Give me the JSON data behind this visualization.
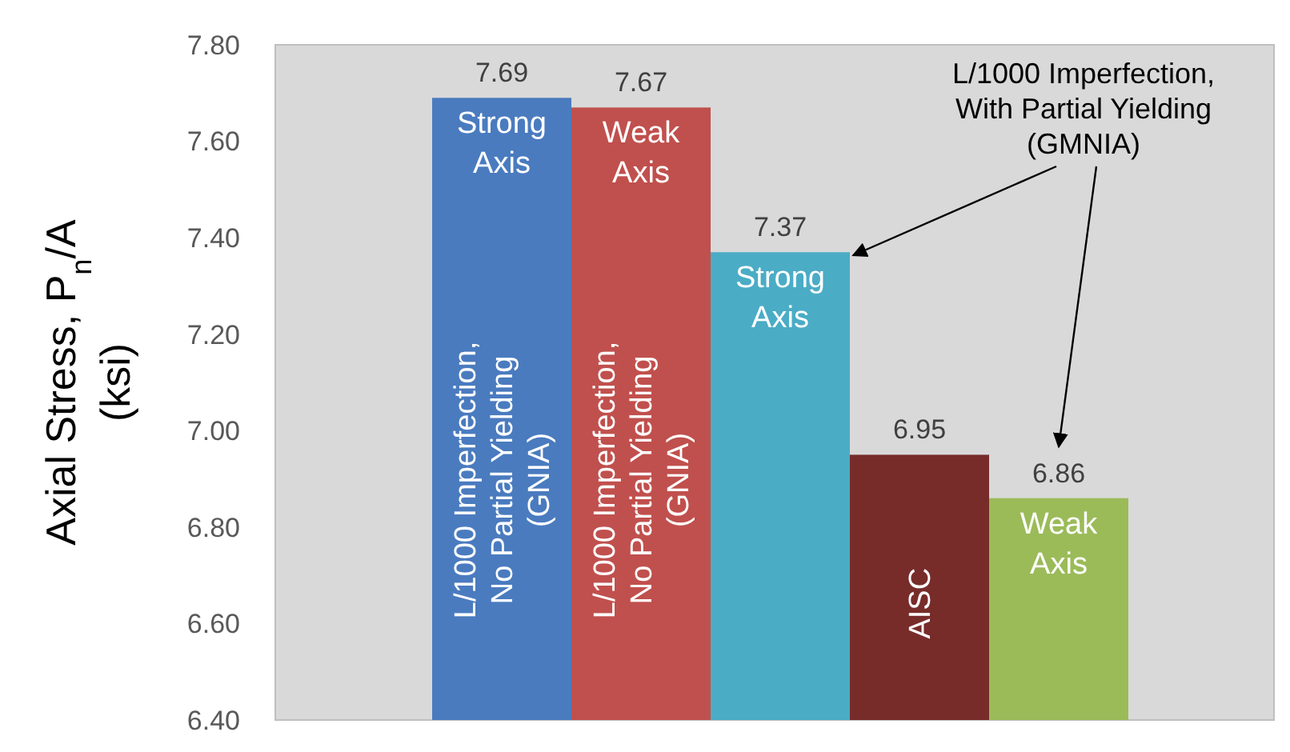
{
  "chart_data": {
    "type": "bar",
    "ylabel": "Axial Stress, P$_{n}$/A\n(ksi)",
    "categories": [
      null,
      null,
      null,
      null,
      null
    ],
    "values": [
      7.69,
      7.67,
      7.37,
      6.95,
      6.86
    ],
    "colors": [
      "#4a7bbf",
      "#c0504d",
      "#4bacc6",
      "#772c2a",
      "#9bbb59"
    ],
    "ylim": [
      6.4,
      7.8
    ],
    "yticks": [
      {
        "value": 6.4,
        "label": "6.40"
      },
      {
        "value": 6.6,
        "label": "6.60"
      },
      {
        "value": 6.8,
        "label": "6.80"
      },
      {
        "value": 7.0,
        "label": "7.00"
      },
      {
        "value": 7.2,
        "label": "7.20"
      },
      {
        "value": 7.4,
        "label": "7.40"
      },
      {
        "value": 7.6,
        "label": "7.60"
      },
      {
        "value": 7.8,
        "label": "7.80"
      }
    ],
    "data_labels": true,
    "annotations": [
      "Strong\nAxis",
      "Weak\nAxis",
      "L/1000 Imperfection,\nNo Partial Yielding\n(GNIA)",
      "L/1000 Imperfection,\nNo Partial Yielding\n(GNIA)",
      "Strong\nAxis",
      "AISC",
      "Weak\nAxis",
      "L/1000 Imperfection,\nWith Partial Yielding\n(GMNIA)"
    ]
  }
}
